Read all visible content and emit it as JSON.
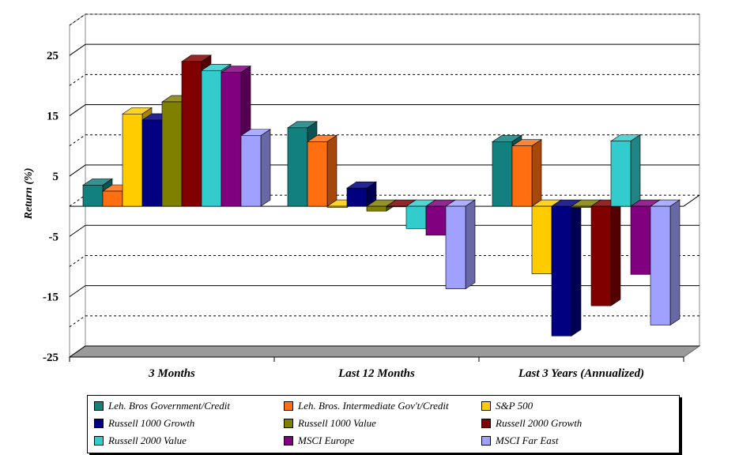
{
  "chart_data": {
    "type": "bar",
    "ylabel": "Return (%)",
    "ylim": [
      -25,
      30
    ],
    "yticks": [
      25,
      15,
      5,
      -5,
      -15,
      -25
    ],
    "gridlines": true,
    "legend_placement": "bottom",
    "categories": [
      "3 Months",
      "Last 12 Months",
      "Last 3 Years (Annualized)"
    ],
    "series": [
      {
        "name": "Leh. Bros Government/Credit",
        "color": "#138080",
        "values": [
          3.5,
          13.0,
          10.7
        ]
      },
      {
        "name": "Leh. Bros. Intermediate Gov't/Credit",
        "color": "#ff6e10",
        "values": [
          2.5,
          10.7,
          10.0
        ]
      },
      {
        "name": "S&P 500",
        "color": "#ffcc00",
        "values": [
          15.3,
          -0.2,
          -11.2
        ]
      },
      {
        "name": "Russell 1000 Growth",
        "color": "#000080",
        "values": [
          14.3,
          3.0,
          -21.5
        ]
      },
      {
        "name": "Russell 1000 Value",
        "color": "#808000",
        "values": [
          17.3,
          -0.8,
          -0.2
        ]
      },
      {
        "name": "Russell 2000 Growth",
        "color": "#800000",
        "values": [
          24.0,
          -0.1,
          -16.5
        ]
      },
      {
        "name": "Russell 2000 Value",
        "color": "#33cccc",
        "values": [
          22.5,
          -3.7,
          10.8
        ]
      },
      {
        "name": "MSCI Europe",
        "color": "#800080",
        "values": [
          22.2,
          -4.8,
          -11.3
        ]
      },
      {
        "name": "MSCI Far East",
        "color": "#a0a0ff",
        "values": [
          11.7,
          -13.7,
          -19.7
        ]
      }
    ]
  }
}
